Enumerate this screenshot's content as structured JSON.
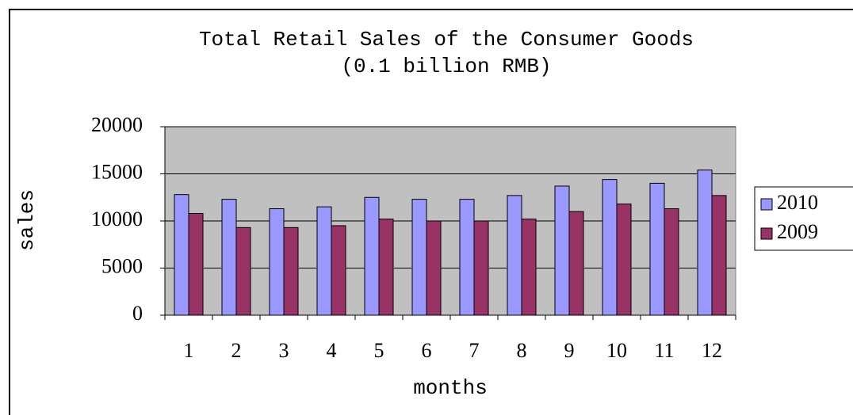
{
  "chart_data": {
    "type": "bar",
    "title": "Total Retail Sales of the Consumer Goods",
    "subtitle": "(0.1 billion RMB)",
    "x_label": "months",
    "y_label": "sales",
    "categories": [
      "1",
      "2",
      "3",
      "4",
      "5",
      "6",
      "7",
      "8",
      "9",
      "10",
      "11",
      "12"
    ],
    "series": [
      {
        "name": "2010",
        "color": "#9999ff",
        "values": [
          12800,
          12300,
          11300,
          11500,
          12500,
          12300,
          12300,
          12700,
          13700,
          14400,
          14000,
          15400
        ]
      },
      {
        "name": "2009",
        "color": "#993366",
        "values": [
          10800,
          9300,
          9300,
          9500,
          10200,
          10000,
          10000,
          10200,
          11000,
          11800,
          11300,
          12700
        ]
      }
    ],
    "ylim": [
      0,
      20000
    ],
    "yticks": [
      0,
      5000,
      10000,
      15000,
      20000
    ],
    "grid": true,
    "legend": "right"
  }
}
